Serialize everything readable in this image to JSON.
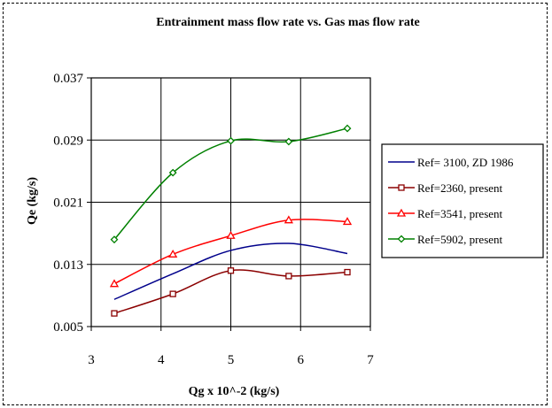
{
  "chart_data": {
    "type": "line",
    "title": "Entrainment mass flow rate vs. Gas mas flow rate",
    "xlabel": "Qg x 10^-2 (kg/s)",
    "ylabel": "Qe (kg/s)",
    "xlim": [
      3,
      7
    ],
    "ylim": [
      0.005,
      0.037
    ],
    "xticks": [
      "3",
      "4",
      "5",
      "6",
      "7"
    ],
    "yticks": [
      "0.005",
      "0.013",
      "0.021",
      "0.029",
      "0.037"
    ],
    "grid": true,
    "legend_position": "right",
    "series": [
      {
        "name": "Ref= 3100, ZD 1986",
        "color": "#00008b",
        "marker": "none",
        "x": [
          3.33,
          4.17,
          5.0,
          5.83,
          6.67
        ],
        "y": [
          0.0085,
          0.0118,
          0.0148,
          0.0157,
          0.0144
        ]
      },
      {
        "name": "Ref=2360, present",
        "color": "#8b0000",
        "marker": "square",
        "x": [
          3.33,
          4.17,
          5.0,
          5.83,
          6.67
        ],
        "y": [
          0.0067,
          0.0092,
          0.0122,
          0.0115,
          0.012
        ]
      },
      {
        "name": "Ref=3541, present",
        "color": "#ff0000",
        "marker": "triangle",
        "x": [
          3.33,
          4.17,
          5.0,
          5.83,
          6.67
        ],
        "y": [
          0.0105,
          0.0143,
          0.0167,
          0.0187,
          0.0185
        ]
      },
      {
        "name": "Ref=5902, present",
        "color": "#008000",
        "marker": "diamond",
        "x": [
          3.33,
          4.17,
          5.0,
          5.83,
          6.67
        ],
        "y": [
          0.0162,
          0.0248,
          0.0289,
          0.0288,
          0.0305
        ]
      }
    ]
  }
}
